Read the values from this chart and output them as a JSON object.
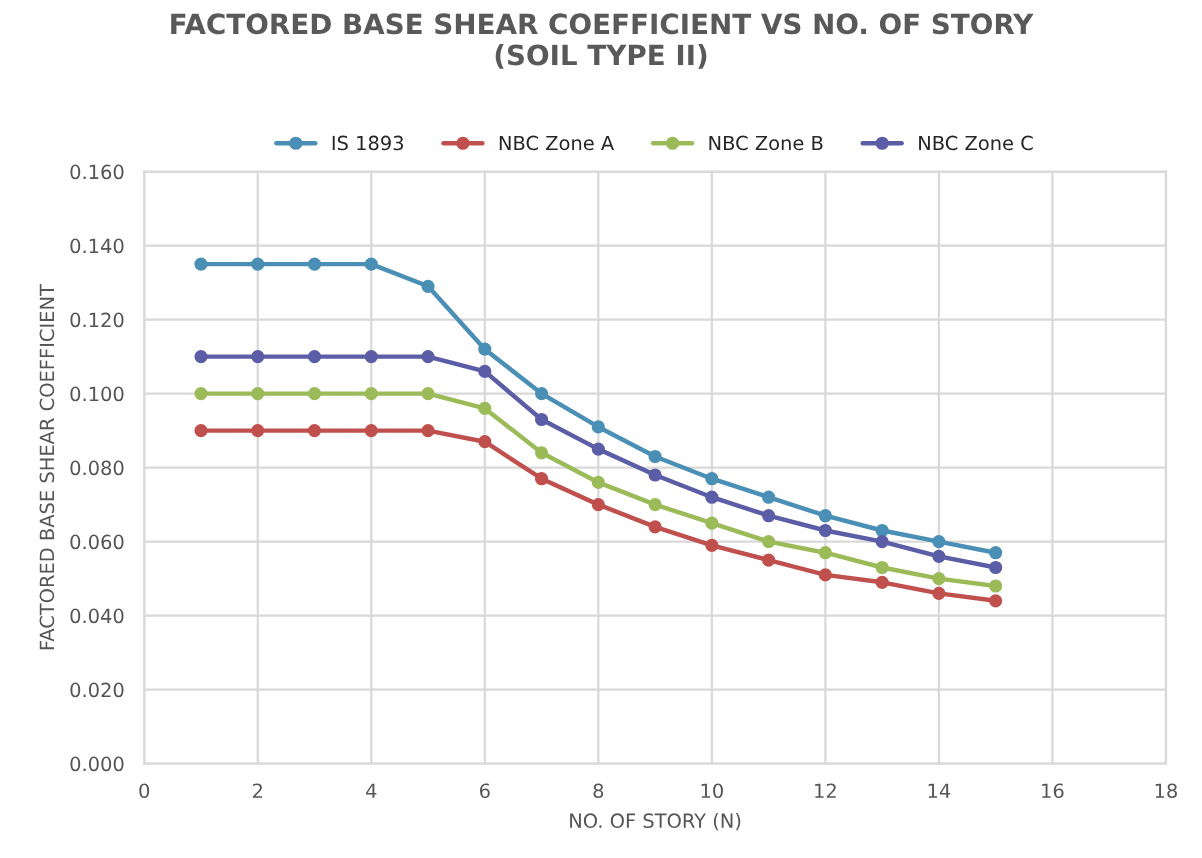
{
  "chart_data": {
    "type": "line",
    "title": "FACTORED BASE SHEAR COEFFICIENT VS NO. OF STORY\n(SOIL TYPE II)",
    "xlabel": "NO. OF STORY (N)",
    "ylabel": "FACTORED BASE SHEAR COEFFICIENT",
    "x": [
      1,
      2,
      3,
      4,
      5,
      6,
      7,
      8,
      9,
      10,
      11,
      12,
      13,
      14,
      15
    ],
    "series": [
      {
        "name": "IS 1893",
        "color": "#4a8fb5",
        "values": [
          0.135,
          0.135,
          0.135,
          0.135,
          0.129,
          0.112,
          0.1,
          0.091,
          0.083,
          0.077,
          0.072,
          0.067,
          0.063,
          0.06,
          0.057
        ]
      },
      {
        "name": "NBC Zone A",
        "color": "#c0504d",
        "values": [
          0.09,
          0.09,
          0.09,
          0.09,
          0.09,
          0.087,
          0.077,
          0.07,
          0.064,
          0.059,
          0.055,
          0.051,
          0.049,
          0.046,
          0.044
        ]
      },
      {
        "name": "NBC Zone B",
        "color": "#9bbb59",
        "values": [
          0.1,
          0.1,
          0.1,
          0.1,
          0.1,
          0.096,
          0.084,
          0.076,
          0.07,
          0.065,
          0.06,
          0.057,
          0.053,
          0.05,
          0.048
        ]
      },
      {
        "name": "NBC Zone C",
        "color": "#5b5ea6",
        "values": [
          0.11,
          0.11,
          0.11,
          0.11,
          0.11,
          0.106,
          0.093,
          0.085,
          0.078,
          0.072,
          0.067,
          0.063,
          0.06,
          0.056,
          0.053
        ]
      }
    ],
    "xlim": [
      0,
      18
    ],
    "xticks": [
      0,
      2,
      4,
      6,
      8,
      10,
      12,
      14,
      16,
      18
    ],
    "ylim": [
      0,
      0.16
    ],
    "yticks": [
      {
        "value": 0,
        "label": "0.000"
      },
      {
        "value": 0.02,
        "label": "0.020"
      },
      {
        "value": 0.04,
        "label": "0.040"
      },
      {
        "value": 0.06,
        "label": "0.060"
      },
      {
        "value": 0.08,
        "label": "0.080"
      },
      {
        "value": 0.1,
        "label": "0.100"
      },
      {
        "value": 0.12,
        "label": "0.120"
      },
      {
        "value": 0.14,
        "label": "0.140"
      },
      {
        "value": 0.16,
        "label": "0.160"
      }
    ],
    "grid": true,
    "legend": "top",
    "marker": "circle",
    "line_style": "solid"
  }
}
